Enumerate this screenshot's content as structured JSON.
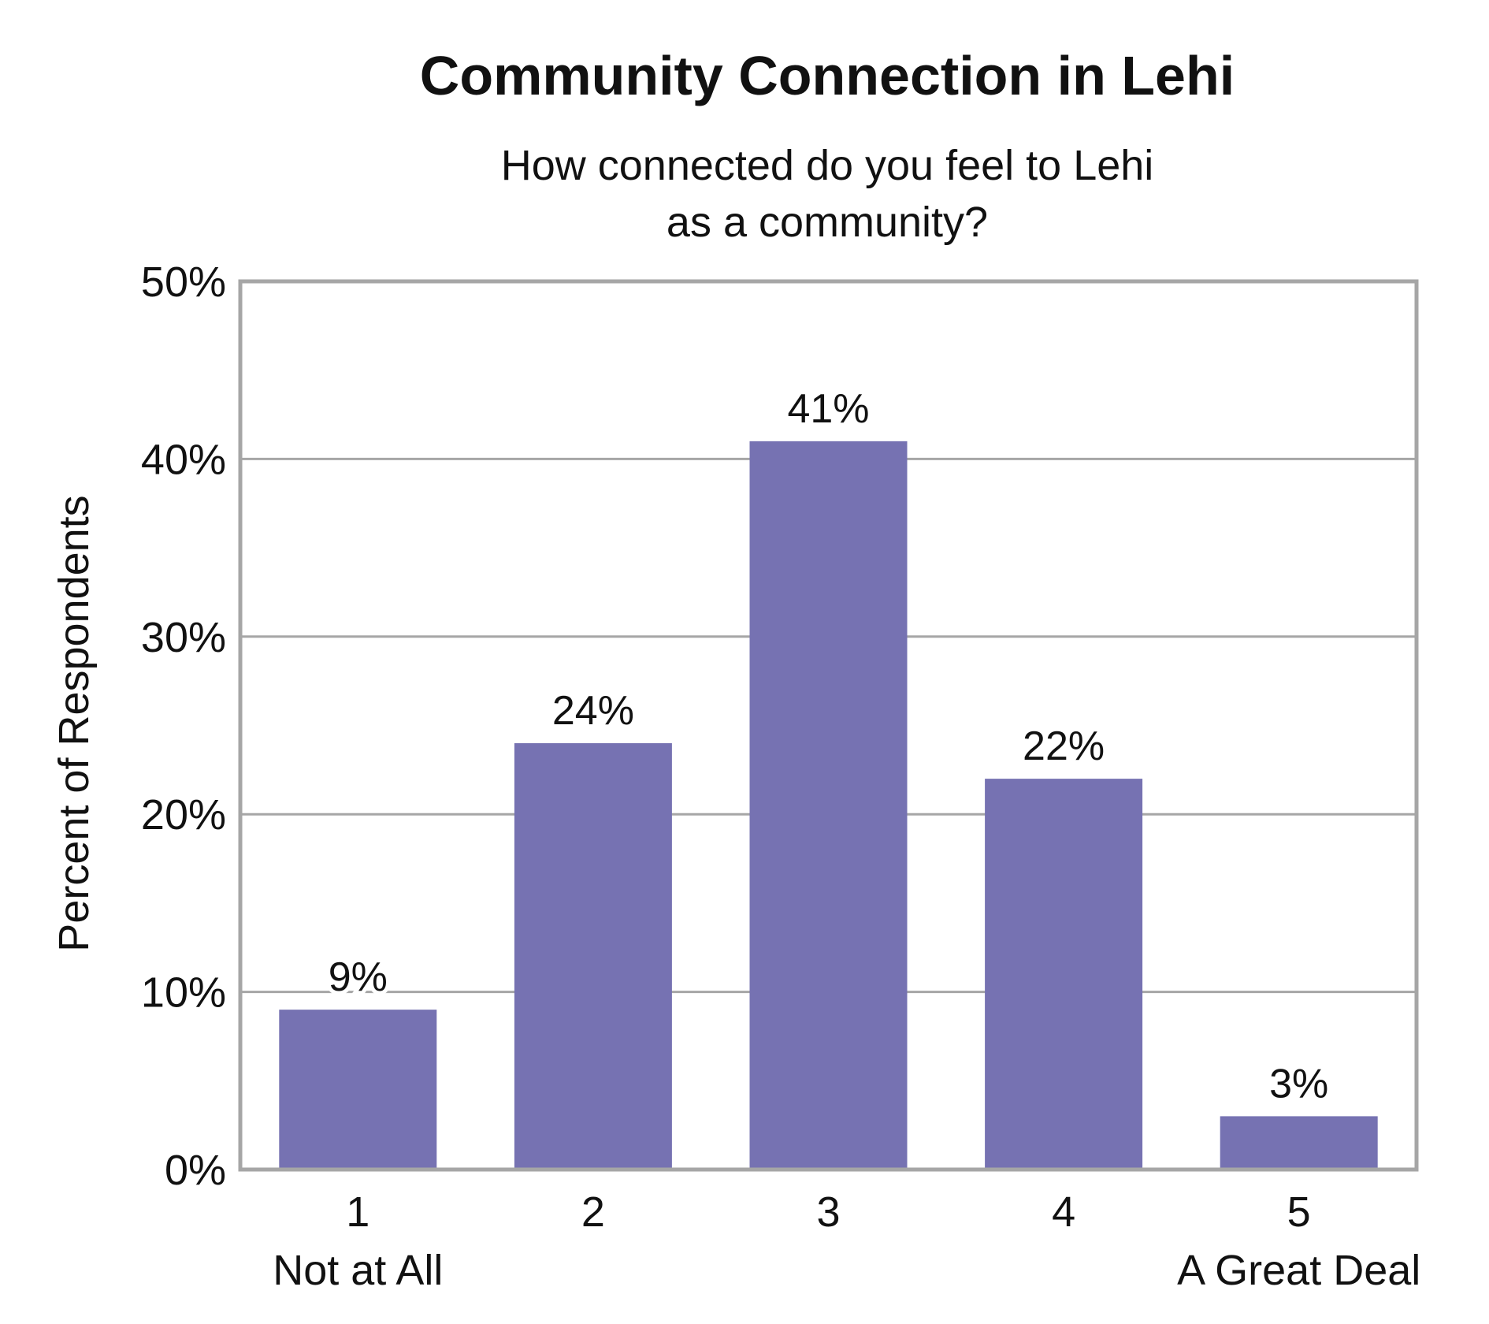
{
  "chart_data": {
    "type": "bar",
    "title": "Community Connection in Lehi",
    "subtitle": [
      "How connected do you feel to Lehi",
      "as a community?"
    ],
    "ylabel": "Percent of Respondents",
    "xlabel": "",
    "categories": [
      "1",
      "2",
      "3",
      "4",
      "5"
    ],
    "category_sublabels": [
      "Not at All",
      "",
      "",
      "",
      "A Great Deal"
    ],
    "values": [
      9,
      24,
      41,
      22,
      3
    ],
    "data_labels": [
      "9%",
      "24%",
      "41%",
      "22%",
      "3%"
    ],
    "ylim": [
      0,
      50
    ],
    "yticks": [
      0,
      10,
      20,
      30,
      40,
      50
    ],
    "ytick_labels": [
      "0%",
      "10%",
      "20%",
      "30%",
      "40%",
      "50%"
    ],
    "grid": true,
    "legend": "none",
    "bar_color": "#7672b2",
    "gridline_color": "#a6a6a6",
    "axis_color": "#a6a6a6"
  }
}
